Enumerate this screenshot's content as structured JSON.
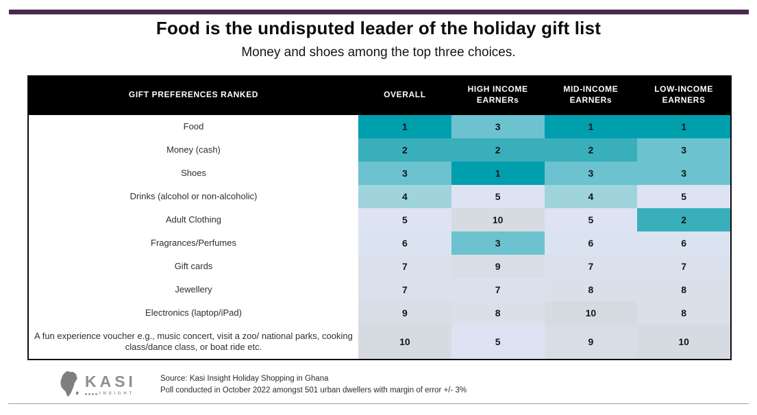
{
  "page": {
    "title": "Food is the undisputed leader of the holiday gift list",
    "subtitle": "Money and shoes among the top three choices.",
    "accent_bar_color": "#4A2950"
  },
  "chart_data": {
    "type": "table",
    "title": "Food is the undisputed leader of the holiday gift list",
    "subtitle": "Money and shoes among the top three choices.",
    "columns": [
      "GIFT PREFERENCES RANKED",
      "OVERALL",
      "HIGH INCOME EARNERs",
      "MID-INCOME EARNERs",
      "LOW-INCOME EARNERS"
    ],
    "rows": [
      {
        "label": "Food",
        "ranks": [
          1,
          3,
          1,
          1
        ]
      },
      {
        "label": "Money (cash)",
        "ranks": [
          2,
          2,
          2,
          3
        ]
      },
      {
        "label": "Shoes",
        "ranks": [
          3,
          1,
          3,
          3
        ]
      },
      {
        "label": "Drinks (alcohol or non-alcoholic)",
        "ranks": [
          4,
          5,
          4,
          5
        ]
      },
      {
        "label": "Adult Clothing",
        "ranks": [
          5,
          10,
          5,
          2
        ]
      },
      {
        "label": "Fragrances/Perfumes",
        "ranks": [
          6,
          3,
          6,
          6
        ]
      },
      {
        "label": "Gift cards",
        "ranks": [
          7,
          9,
          7,
          7
        ]
      },
      {
        "label": "Jewellery",
        "ranks": [
          7,
          7,
          8,
          8
        ]
      },
      {
        "label": "Electronics (laptop/iPad)",
        "ranks": [
          9,
          8,
          10,
          8
        ]
      },
      {
        "label": "A fun experience voucher e.g., music concert, visit a zoo/ national parks, cooking class/dance class, or boat ride etc.",
        "ranks": [
          10,
          5,
          9,
          10
        ]
      }
    ],
    "rank_colors": {
      "1": "#009FAE",
      "2": "#39AFBB",
      "3": "#6CC2CF",
      "4": "#9FD4DC",
      "5": "#DDE3F2",
      "6": "#DBE2F0",
      "7": "#DAE1ED",
      "8": "#D9E0EA",
      "9": "#D8DEE6",
      "10": "#D6DBE1"
    },
    "layout": {
      "header_bg": "#000000",
      "header_text": "#ffffff",
      "legend": "off",
      "grid": "off"
    }
  },
  "footer": {
    "logo_brand": "KASI",
    "logo_insight": "INSIGHT",
    "source_line1": "Source: Kasi Insight Holiday Shopping in Ghana",
    "source_line2": "Poll conducted in October 2022 amongst 501 urban dwellers with margin of error +/- 3%"
  }
}
